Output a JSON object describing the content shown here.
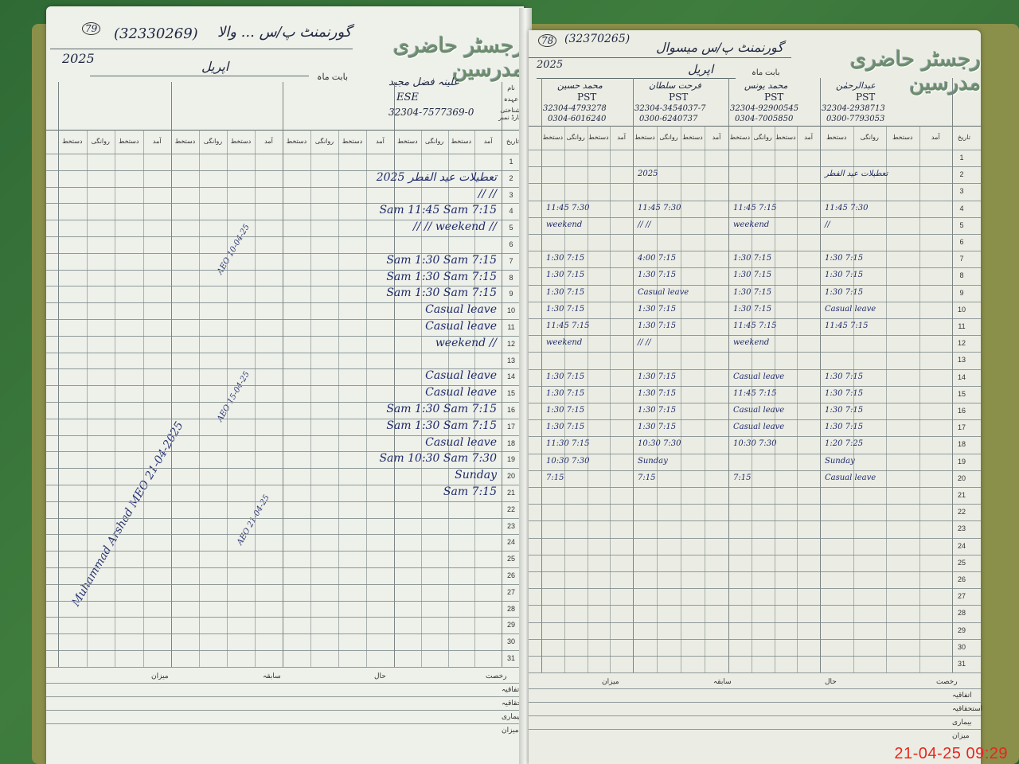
{
  "left_page": {
    "title": "رجسٹر حاضری مدرسین",
    "page_no": "79",
    "emis_code": "(32330269)",
    "school": "گورنمنٹ پ/س ... والا",
    "year": "2025",
    "month_label": "بابت ماہ",
    "month": "اپریل",
    "label_name": "نام",
    "label_designation": "عہدہ",
    "label_id": "شناختی کارڈ نمبر",
    "teacher": {
      "name": "علینہ فضل مجید",
      "designation": "ESE",
      "cnic": "32304-7577369-0"
    },
    "column_headers": [
      "تاریخ",
      "آمد",
      "دستخط",
      "روانگی",
      "دستخط"
    ],
    "rows": [
      {
        "d": 2,
        "t": "تعطیلات عید الفطر  2025"
      },
      {
        "d": 3,
        "t": "//            //"
      },
      {
        "d": 4,
        "t": "Sam 11:45 Sam 7:15"
      },
      {
        "d": 5,
        "t": "//       //  weekend  //"
      },
      {
        "d": 7,
        "t": "Sam 1:30 Sam 7:15"
      },
      {
        "d": 8,
        "t": "Sam 1:30 Sam 7:15"
      },
      {
        "d": 9,
        "t": "Sam 1:30 Sam 7:15"
      },
      {
        "d": 10,
        "t": "Casual leave"
      },
      {
        "d": 11,
        "t": "Casual leave"
      },
      {
        "d": 12,
        "t": "weekend  //"
      },
      {
        "d": 14,
        "t": "Casual leave"
      },
      {
        "d": 15,
        "t": "Casual leave"
      },
      {
        "d": 16,
        "t": "Sam 1:30 Sam 7:15"
      },
      {
        "d": 17,
        "t": "Sam 1:30 Sam 7:15"
      },
      {
        "d": 18,
        "t": "Casual leave"
      },
      {
        "d": 19,
        "t": "Sam 10:30 Sam 7:30"
      },
      {
        "d": 20,
        "t": "Sunday"
      },
      {
        "d": 21,
        "t": "Sam 7:15"
      }
    ],
    "signatures": [
      {
        "text": "AEO  10-04-25"
      },
      {
        "text": "AEO  15-04-25"
      },
      {
        "text": "AEO  21-04-25"
      },
      {
        "text": "Muhammad Arshad  MEO  21-04-2025"
      }
    ],
    "summary_headers": [
      "رخصت",
      "حال",
      "سابقہ",
      "میزان"
    ],
    "summary_rows": [
      "اتفاقیہ",
      "استحقاقیہ",
      "بیماری",
      "میزان"
    ]
  },
  "right_page": {
    "title": "رجسٹر حاضری مدرسین",
    "page_no": "78",
    "emis_code": "(32370265)",
    "school": "گورنمنٹ پ/س میسوال",
    "year": "2025",
    "month_label": "بابت ماہ",
    "month": "اپریل",
    "teachers": [
      {
        "name": "عبدالرحمٰن",
        "designation": "PST",
        "cnic": "32304-2938713",
        "phone": "0300-7793053"
      },
      {
        "name": "محمد یونس",
        "designation": "PST",
        "cnic": "32304-92900545",
        "phone": "0304-7005850"
      },
      {
        "name": "فرحت سلطان",
        "designation": "PST",
        "cnic": "32304-3454037-7",
        "phone": "0300-6240737"
      },
      {
        "name": "محمد حسین",
        "designation": "PST",
        "cnic": "32304-4793278",
        "phone": "0304-6016240"
      }
    ],
    "rows": [
      {
        "d": 2,
        "c": [
          "تعطیلات عید الفطر",
          "",
          "2025",
          ""
        ]
      },
      {
        "d": 4,
        "c": [
          "11:45  7:30",
          "11:45  7:15",
          "11:45  7:30",
          "11:45  7:30"
        ]
      },
      {
        "d": 5,
        "c": [
          "//",
          "weekend",
          "//    //",
          "weekend"
        ]
      },
      {
        "d": 7,
        "c": [
          "1:30  7:15",
          "1:30  7:15",
          "4:00  7:15",
          "1:30  7:15"
        ]
      },
      {
        "d": 8,
        "c": [
          "1:30  7:15",
          "1:30  7:15",
          "1:30  7:15",
          "1:30  7:15"
        ]
      },
      {
        "d": 9,
        "c": [
          "1:30  7:15",
          "1:30  7:15",
          "Casual leave",
          "1:30  7:15"
        ]
      },
      {
        "d": 10,
        "c": [
          "Casual leave",
          "1:30  7:15",
          "1:30  7:15",
          "1:30  7:15"
        ]
      },
      {
        "d": 11,
        "c": [
          "11:45  7:15",
          "11:45  7:15",
          "1:30  7:15",
          "11:45  7:15"
        ]
      },
      {
        "d": 12,
        "c": [
          "",
          "weekend",
          "//   //",
          "weekend"
        ]
      },
      {
        "d": 14,
        "c": [
          "1:30  7:15",
          "Casual leave",
          "1:30  7:15",
          "1:30  7:15"
        ]
      },
      {
        "d": 15,
        "c": [
          "1:30  7:15",
          "11:45  7:15",
          "1:30  7:15",
          "1:30  7:15"
        ]
      },
      {
        "d": 16,
        "c": [
          "1:30  7:15",
          "Casual leave",
          "1:30  7:15",
          "1:30  7:15"
        ]
      },
      {
        "d": 17,
        "c": [
          "1:30  7:15",
          "Casual leave",
          "1:30  7:15",
          "1:30  7:15"
        ]
      },
      {
        "d": 18,
        "c": [
          "1:20  7:25",
          "10:30  7:30",
          "10:30  7:30",
          "11:30  7:15"
        ]
      },
      {
        "d": 19,
        "c": [
          "Sunday",
          "",
          "Sunday",
          "10:30  7:30"
        ]
      },
      {
        "d": 20,
        "c": [
          "Casual leave",
          "7:15",
          "7:15",
          "7:15"
        ]
      }
    ],
    "summary_headers": [
      "رخصت",
      "حال",
      "سابقہ",
      "میزان"
    ],
    "summary_rows": [
      "اتفاقیہ",
      "استحقاقیہ",
      "بیماری",
      "میزان"
    ]
  },
  "photo_timestamp": "21-04-25  09:29"
}
